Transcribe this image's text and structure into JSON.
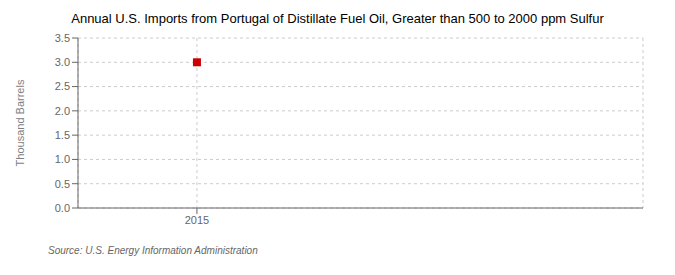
{
  "chart_data": {
    "type": "scatter",
    "title": "Annual U.S. Imports from Portugal of Distillate Fuel Oil, Greater than 500 to 2000 ppm Sulfur",
    "ylabel": "Thousand Barrels",
    "source": "Source: U.S. Energy Information Administration",
    "x": [
      2015
    ],
    "values": [
      3.0
    ],
    "xlim": [
      2014.6,
      2016.5
    ],
    "ylim": [
      0.0,
      3.5
    ],
    "xticks": [
      2015
    ],
    "yticks": [
      {
        "value": 0,
        "label": "0.0"
      },
      0.5,
      {
        "value": 1,
        "label": "1.0"
      },
      1.5,
      {
        "value": 2,
        "label": "2.0"
      },
      2.5,
      {
        "value": 3,
        "label": "3.0"
      },
      3.5
    ],
    "color": "#cc0000",
    "marker": "square",
    "grid": true
  }
}
